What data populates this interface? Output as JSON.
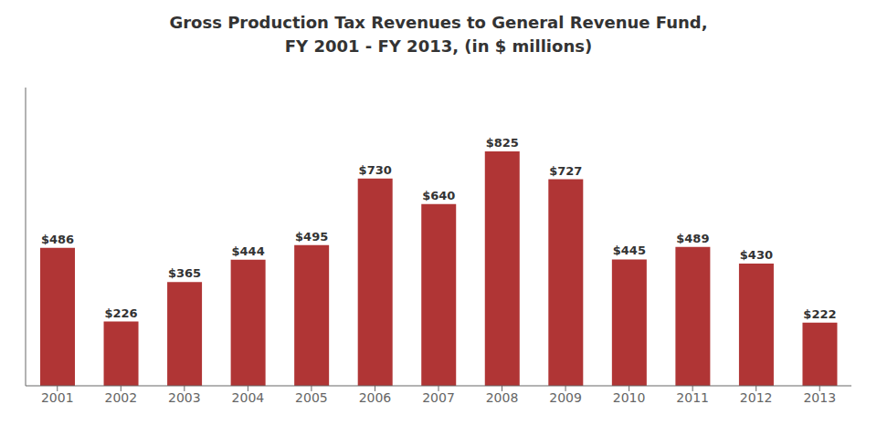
{
  "chart_data": {
    "type": "bar",
    "title": "Gross Production Tax Revenues to General Revenue Fund,\nFY 2001 - FY 2013, (in $ millions)",
    "categories": [
      "2001",
      "2002",
      "2003",
      "2004",
      "2005",
      "2006",
      "2007",
      "2008",
      "2009",
      "2010",
      "2011",
      "2012",
      "2013"
    ],
    "values": [
      486,
      226,
      365,
      444,
      495,
      730,
      640,
      825,
      727,
      445,
      489,
      430,
      222
    ],
    "value_labels": [
      "$486",
      "$226",
      "$365",
      "$444",
      "$495",
      "$730",
      "$640",
      "$825",
      "$727",
      "$445",
      "$489",
      "$430",
      "$222"
    ],
    "data_labels": true,
    "color": "#b03535",
    "ylim": [
      0,
      1050
    ],
    "tick_labels": "x",
    "grid": false
  }
}
